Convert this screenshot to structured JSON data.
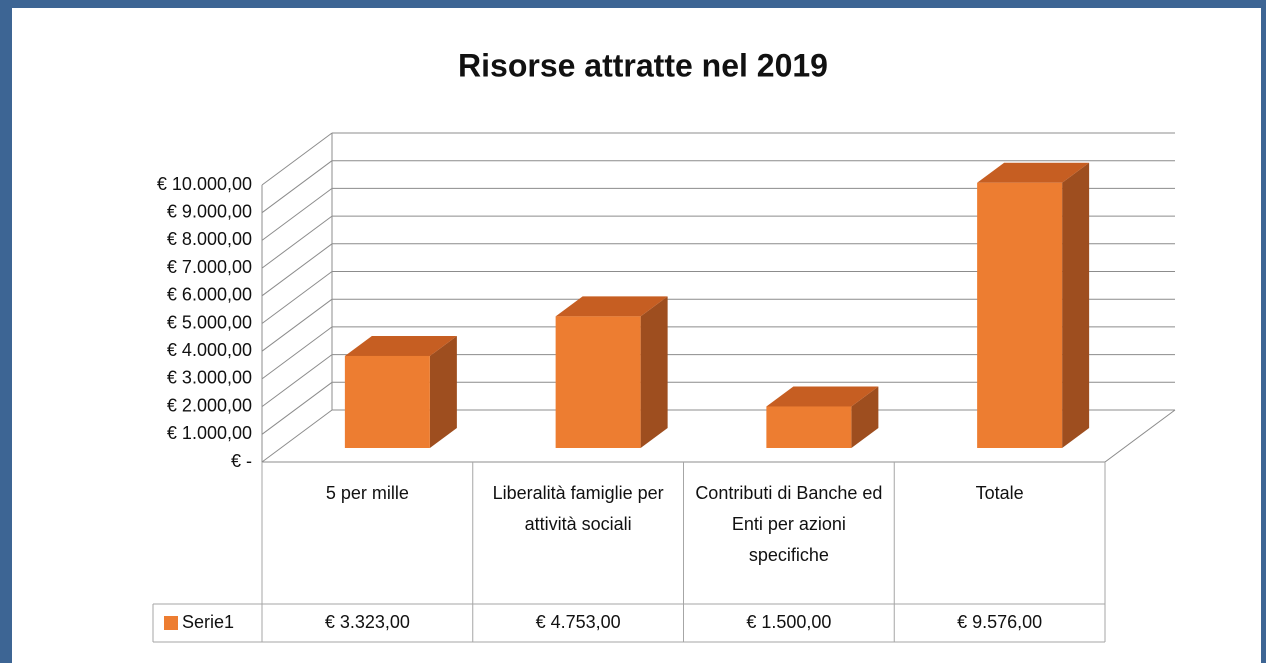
{
  "chart_data": {
    "type": "bar3d",
    "title": "Risorse attratte nel 2019",
    "categories": [
      "5 per mille",
      "Liberalità famiglie per attività sociali",
      "Contributi di Banche ed Enti per azioni specifiche",
      "Totale"
    ],
    "series": [
      {
        "name": "Serie1",
        "color": "#ed7d31",
        "values": [
          3323,
          4753,
          1500,
          9576
        ],
        "value_labels": [
          "€ 3.323,00",
          "€ 4.753,00",
          "€ 1.500,00",
          "€ 9.576,00"
        ]
      }
    ],
    "ylim": [
      0,
      10000
    ],
    "yticks": [
      {
        "value": 0,
        "label": "€ -"
      },
      {
        "value": 1000,
        "label": "€ 1.000,00"
      },
      {
        "value": 2000,
        "label": "€ 2.000,00"
      },
      {
        "value": 3000,
        "label": "€ 3.000,00"
      },
      {
        "value": 4000,
        "label": "€ 4.000,00"
      },
      {
        "value": 5000,
        "label": "€ 5.000,00"
      },
      {
        "value": 6000,
        "label": "€ 6.000,00"
      },
      {
        "value": 7000,
        "label": "€ 7.000,00"
      },
      {
        "value": 8000,
        "label": "€ 8.000,00"
      },
      {
        "value": 9000,
        "label": "€ 9.000,00"
      },
      {
        "value": 10000,
        "label": "€ 10.000,00"
      }
    ],
    "grid": true,
    "data_table": true
  }
}
